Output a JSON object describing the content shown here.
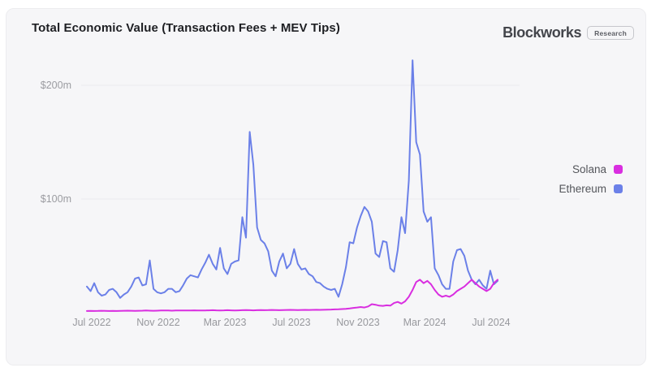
{
  "brand": {
    "name": "Blockworks",
    "badge": "Research"
  },
  "chart_data": {
    "type": "line",
    "title": "Total Economic Value (Transaction Fees + MEV Tips)",
    "unit": "$ millions (weekly)",
    "x_range_note": "weekly points, Jul 2022 - Aug 2024",
    "x_tick_labels": [
      "Jul 2022",
      "Nov 2022",
      "Mar 2023",
      "Jul 2023",
      "Nov 2023",
      "Mar 2024",
      "Jul 2024"
    ],
    "y_ticks": [
      {
        "label": "$200m",
        "value": 200
      },
      {
        "label": "$100m",
        "value": 100
      }
    ],
    "ylim": [
      0,
      235
    ],
    "grid": "horizontal",
    "legend_position": "right",
    "background_color": "#f6f6f8",
    "gridline_color": "#ebebee",
    "series": [
      {
        "name": "Solana",
        "color": "#d92ee0",
        "values": [
          1.5,
          1.6,
          1.5,
          1.6,
          1.7,
          1.6,
          1.5,
          1.6,
          1.5,
          1.6,
          1.7,
          1.8,
          1.7,
          1.6,
          1.7,
          1.8,
          1.9,
          1.8,
          1.7,
          1.8,
          1.9,
          2.0,
          1.9,
          1.8,
          1.9,
          2.0,
          2.0,
          1.9,
          2.0,
          2.1,
          2.0,
          1.9,
          2.0,
          2.1,
          2.2,
          2.1,
          2.0,
          2.1,
          2.2,
          2.1,
          2.0,
          2.1,
          2.2,
          2.3,
          2.2,
          2.1,
          2.2,
          2.3,
          2.2,
          2.3,
          2.4,
          2.3,
          2.2,
          2.3,
          2.4,
          2.5,
          2.4,
          2.3,
          2.4,
          2.5,
          2.4,
          2.5,
          2.6,
          2.5,
          2.6,
          2.7,
          2.8,
          2.9,
          3.0,
          3.2,
          3.4,
          3.8,
          4.2,
          4.6,
          5.0,
          4.6,
          5.5,
          7.5,
          7.0,
          6.2,
          6.0,
          6.5,
          6.2,
          8.5,
          9.5,
          8.0,
          10,
          14,
          20,
          27,
          29,
          26,
          28,
          25,
          20,
          16,
          14,
          15,
          14,
          16,
          19,
          21,
          23,
          26,
          29,
          26,
          23,
          21,
          19,
          21,
          26,
          29
        ]
      },
      {
        "name": "Ethereum",
        "color": "#6b80e8",
        "values": [
          23,
          19,
          26,
          18,
          15,
          16,
          20,
          21,
          18,
          13,
          16,
          18,
          23,
          30,
          31,
          24,
          25,
          46,
          21,
          18,
          17,
          18,
          21,
          21,
          18,
          19,
          24,
          30,
          33,
          32,
          31,
          38,
          44,
          51,
          43,
          38,
          57,
          39,
          34,
          43,
          45,
          46,
          84,
          66,
          159,
          130,
          75,
          64,
          61,
          54,
          37,
          32,
          45,
          52,
          39,
          43,
          56,
          43,
          38,
          39,
          34,
          32,
          27,
          26,
          23,
          21,
          20,
          21,
          14,
          25,
          40,
          62,
          61,
          75,
          85,
          93,
          89,
          80,
          52,
          49,
          63,
          62,
          39,
          36,
          55,
          84,
          70,
          116,
          222,
          150,
          139,
          89,
          80,
          84,
          39,
          33,
          25,
          21,
          21,
          45,
          55,
          56,
          50,
          37,
          29,
          25,
          29,
          24,
          21,
          37,
          25,
          28
        ]
      }
    ]
  }
}
